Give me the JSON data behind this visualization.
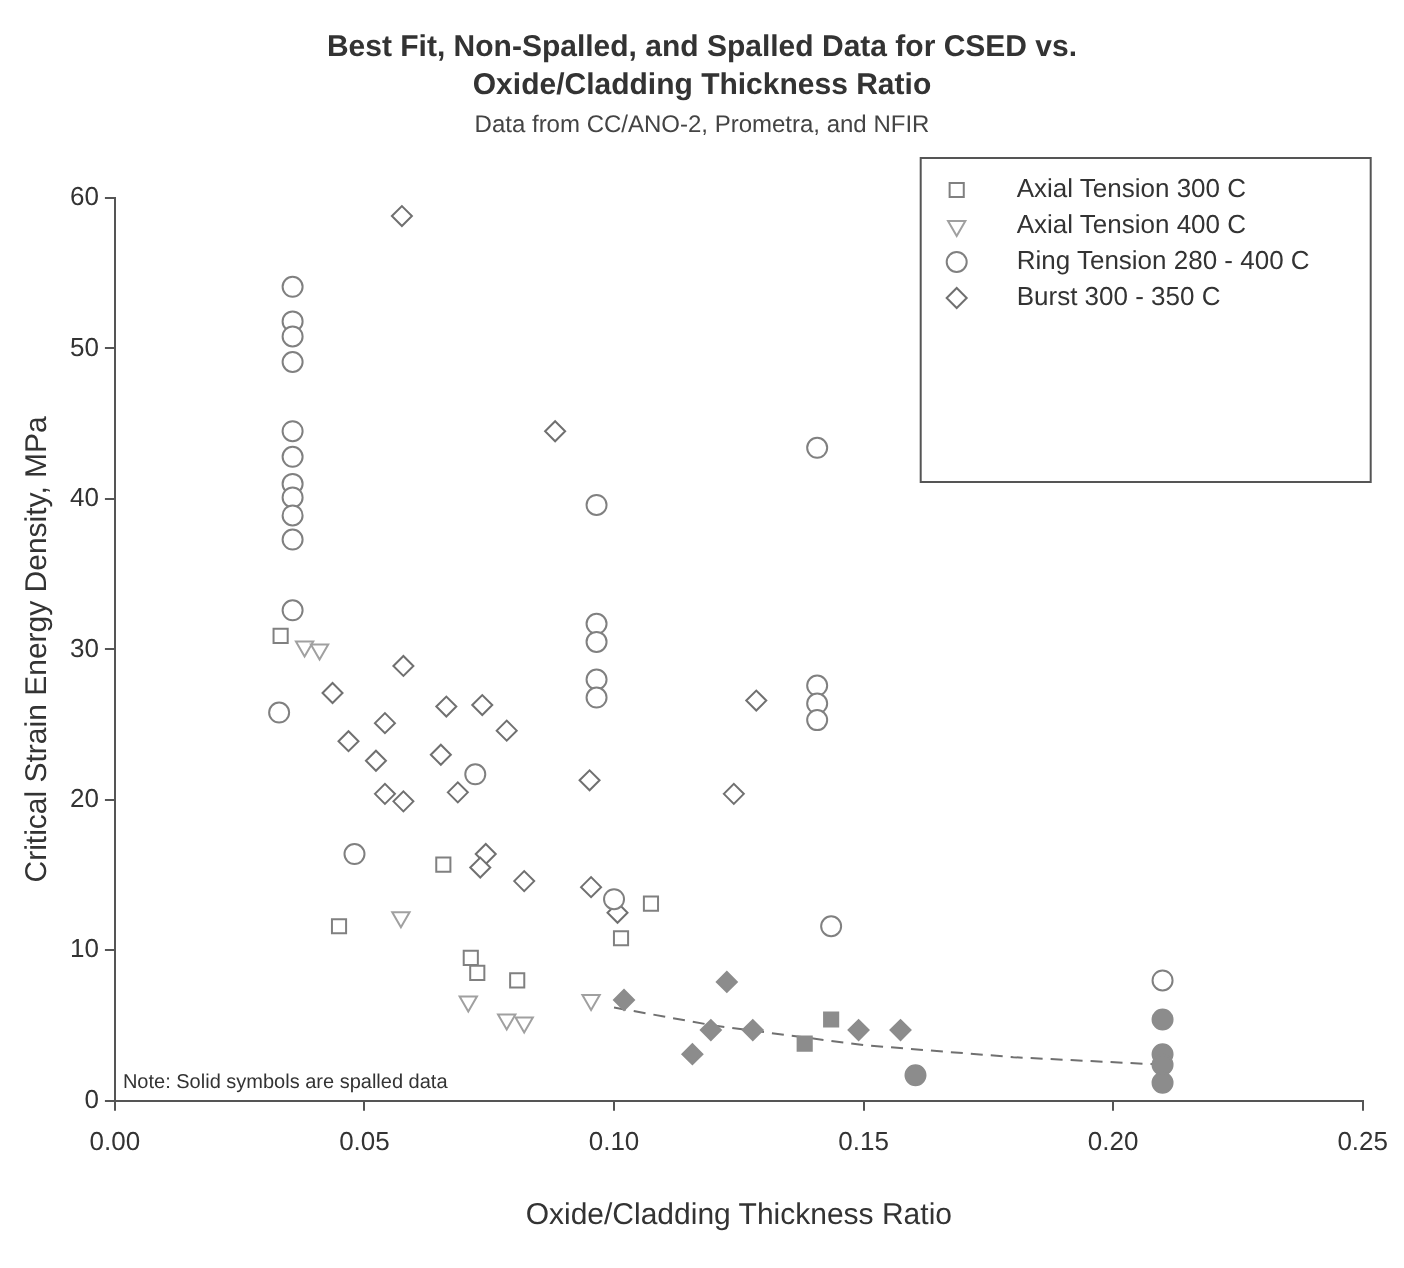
{
  "chart_data": {
    "type": "scatter",
    "title": "Best Fit, Non-Spalled, and Spalled Data for CSED vs. Oxide/Cladding Thickness Ratio",
    "subtitle": "Data from CC/ANO-2, Prometra, and NFIR",
    "xlabel": "Oxide/Cladding Thickness Ratio",
    "ylabel": "Critical Strain Energy Density, MPa",
    "xlim": [
      0,
      0.25
    ],
    "xticks": [
      {
        "value": 0,
        "label": "0.00"
      },
      {
        "value": 0.05,
        "label": "0.05"
      },
      {
        "value": 0.1,
        "label": "0.10"
      },
      {
        "value": 0.15,
        "label": "0.15"
      },
      {
        "value": 0.2,
        "label": "0.20"
      },
      {
        "value": 0.25,
        "label": "0.25"
      }
    ],
    "ylim": [
      0,
      60
    ],
    "yticks": [
      0,
      10,
      20,
      30,
      40,
      50,
      60
    ],
    "grid": false,
    "legend": "top right",
    "annotations": [
      "Note: Solid symbols are spalled data"
    ],
    "series": [
      {
        "name": "Axial Tension 300 C",
        "color": "#808080",
        "marker": "square",
        "x": [
          0.0332,
          0.0449,
          0.0658,
          0.0713,
          0.0726,
          0.0806,
          0.1014,
          0.1074
        ],
        "values": [
          30.9,
          11.6,
          15.7,
          9.5,
          8.5,
          8.0,
          10.8,
          13.1
        ]
      },
      {
        "name": "Axial Tension 400 C",
        "color": "#a0a0a0",
        "marker": "triangle",
        "x": [
          0.038,
          0.041,
          0.0573,
          0.0708,
          0.0785,
          0.082,
          0.0954
        ],
        "values": [
          30.2,
          30.0,
          12.2,
          6.6,
          5.4,
          5.2,
          6.7
        ]
      },
      {
        "name": "Ring Tension 280 - 400 C",
        "color": "#808080",
        "marker": "circle",
        "x": [
          0.0356,
          0.0356,
          0.0356,
          0.0356,
          0.0356,
          0.0356,
          0.0356,
          0.0356,
          0.0356,
          0.0356,
          0.0356,
          0.0329,
          0.048,
          0.0722,
          0.0965,
          0.0965,
          0.0965,
          0.0965,
          0.0965,
          0.1,
          0.1407,
          0.1407,
          0.1407,
          0.1407,
          0.1435,
          0.2099
        ],
        "values": [
          54.1,
          51.8,
          50.8,
          49.1,
          44.5,
          42.8,
          41.0,
          40.1,
          38.9,
          37.3,
          32.6,
          25.8,
          16.4,
          21.7,
          39.6,
          31.7,
          30.5,
          28.0,
          26.8,
          13.4,
          43.4,
          27.6,
          26.4,
          25.3,
          11.6,
          8.0
        ]
      },
      {
        "name": "Burst 300 - 350 C",
        "color": "#707070",
        "marker": "diamond",
        "x": [
          0.0575,
          0.0578,
          0.0664,
          0.0785,
          0.0951,
          0.0436,
          0.0468,
          0.0523,
          0.0541,
          0.0541,
          0.0578,
          0.0653,
          0.0736,
          0.0687,
          0.0882,
          0.1285,
          0.124,
          0.0743,
          0.0732,
          0.082,
          0.0954,
          0.1007
        ],
        "values": [
          58.8,
          28.9,
          26.2,
          24.6,
          21.3,
          27.1,
          23.9,
          22.6,
          25.1,
          20.4,
          19.9,
          23.0,
          26.3,
          20.5,
          44.5,
          26.6,
          20.4,
          16.4,
          15.5,
          14.6,
          14.2,
          12.5
        ]
      },
      {
        "color": "#8c8c8c",
        "marker": "square",
        "x": [
          0.1382,
          0.1435
        ],
        "values": [
          3.8,
          5.4
        ]
      },
      {
        "color": "#8c8c8c",
        "marker": "circle",
        "x": [
          0.1604,
          0.2099,
          0.2099,
          0.2099,
          0.2099
        ],
        "values": [
          1.7,
          5.4,
          3.1,
          2.4,
          1.2
        ]
      },
      {
        "color": "#8c8c8c",
        "marker": "diamond",
        "x": [
          0.102,
          0.1226,
          0.1194,
          0.1278,
          0.149,
          0.1574,
          0.1157
        ],
        "values": [
          6.7,
          7.9,
          4.7,
          4.7,
          4.7,
          4.7,
          3.1
        ]
      },
      {
        "type": "line",
        "color": "#707070",
        "line_style": "dashed",
        "marker": "none",
        "x": [
          0.1,
          0.12,
          0.15,
          0.18,
          0.21
        ],
        "values": [
          6.2,
          5.0,
          3.7,
          2.9,
          2.4
        ]
      }
    ]
  }
}
